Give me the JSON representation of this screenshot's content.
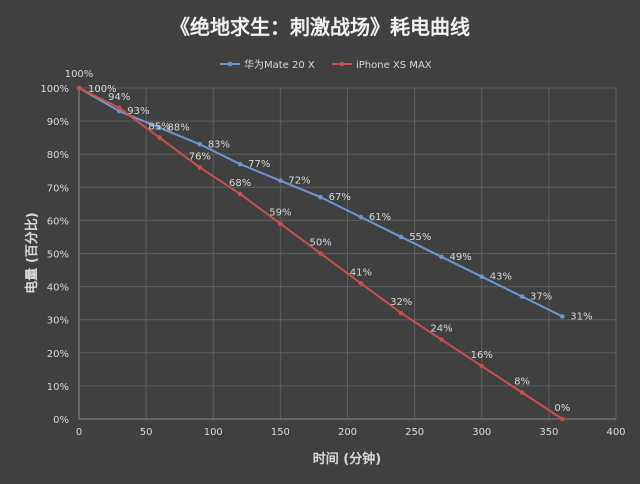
{
  "chart_data": {
    "type": "line",
    "title": "《绝地求生：刺激战场》耗电曲线",
    "xlabel": "时间 (分钟)",
    "ylabel": "电量 (百分比)",
    "xlim": [
      0,
      400
    ],
    "ylim": [
      0,
      100
    ],
    "x_ticks": [
      "0",
      "50",
      "100",
      "150",
      "200",
      "250",
      "300",
      "350",
      "400"
    ],
    "y_ticks": [
      "0%",
      "10%",
      "20%",
      "30%",
      "40%",
      "50%",
      "60%",
      "70%",
      "80%",
      "90%",
      "100%"
    ],
    "grid": true,
    "legend_position": "top",
    "series": [
      {
        "name": "华为Mate 20 X",
        "color": "#6f97cf",
        "x": [
          0,
          30,
          60,
          90,
          120,
          150,
          180,
          210,
          240,
          270,
          300,
          330,
          360
        ],
        "values": [
          100,
          93,
          88,
          83,
          77,
          72,
          67,
          61,
          55,
          49,
          43,
          37,
          31
        ],
        "labels": [
          "100%",
          "93%",
          "88%",
          "83%",
          "77%",
          "72%",
          "67%",
          "61%",
          "55%",
          "49%",
          "43%",
          "37%",
          "31%"
        ]
      },
      {
        "name": "iPhone XS MAX",
        "color": "#c9504f",
        "x": [
          0,
          30,
          60,
          90,
          120,
          150,
          180,
          210,
          240,
          270,
          300,
          330,
          360
        ],
        "values": [
          100,
          94,
          85,
          76,
          68,
          59,
          50,
          41,
          32,
          24,
          16,
          8,
          0
        ],
        "labels": [
          "100%",
          "94%",
          "85%",
          "76%",
          "68%",
          "59%",
          "50%",
          "41%",
          "32%",
          "24%",
          "16%",
          "8%",
          "0%"
        ]
      }
    ]
  }
}
